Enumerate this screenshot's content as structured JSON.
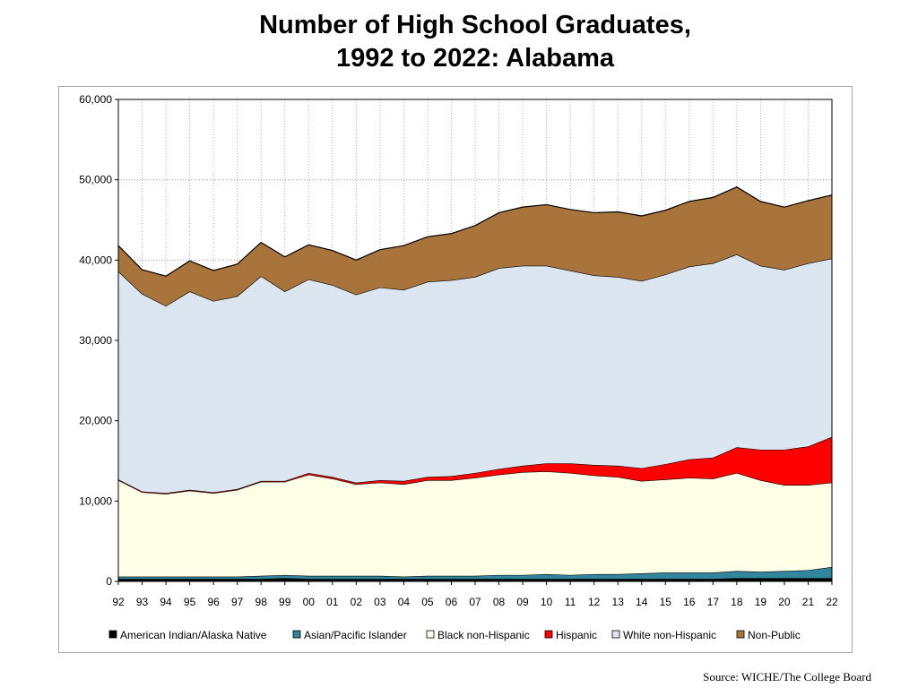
{
  "title": {
    "line1": "Number of High School Graduates,",
    "line2": "1992 to 2022:  Alabama"
  },
  "source": "Source: WICHE/The College Board",
  "chart_data": {
    "type": "area",
    "stacked": true,
    "categories": [
      "92",
      "93",
      "94",
      "95",
      "96",
      "97",
      "98",
      "99",
      "00",
      "01",
      "02",
      "03",
      "04",
      "05",
      "06",
      "07",
      "08",
      "09",
      "10",
      "11",
      "12",
      "13",
      "14",
      "15",
      "16",
      "17",
      "18",
      "19",
      "20",
      "21",
      "22"
    ],
    "ylim": [
      0,
      60000
    ],
    "yticks": [
      0,
      10000,
      20000,
      30000,
      40000,
      50000,
      60000
    ],
    "ytick_labels": [
      "0",
      "10,000",
      "20,000",
      "30,000",
      "40,000",
      "50,000",
      "60,000"
    ],
    "grid": true,
    "legend_position": "bottom",
    "series": [
      {
        "name": "American Indian/Alaska  Native",
        "color": "#000000",
        "values": [
          300,
          300,
          300,
          300,
          300,
          300,
          300,
          400,
          300,
          300,
          300,
          300,
          300,
          300,
          300,
          300,
          300,
          300,
          300,
          300,
          300,
          300,
          300,
          300,
          300,
          300,
          400,
          400,
          400,
          400,
          400
        ]
      },
      {
        "name": "Asian/Pacific Islander",
        "color": "#31859c",
        "values": [
          300,
          300,
          300,
          300,
          300,
          300,
          400,
          400,
          400,
          400,
          400,
          400,
          300,
          400,
          400,
          400,
          500,
          500,
          600,
          500,
          600,
          600,
          700,
          800,
          800,
          800,
          900,
          800,
          900,
          1000,
          1400
        ]
      },
      {
        "name": "Black non-Hispanic",
        "color": "#ffffe8",
        "values": [
          12000,
          10500,
          10300,
          10700,
          10400,
          10800,
          11700,
          11600,
          12600,
          12100,
          11400,
          11600,
          11500,
          11900,
          11900,
          12200,
          12500,
          12800,
          12800,
          12700,
          12300,
          12100,
          11500,
          11600,
          11800,
          11700,
          12200,
          11400,
          10700,
          10600,
          10500
        ]
      },
      {
        "name": "Hispanic",
        "color": "#ff0000",
        "values": [
          100,
          100,
          100,
          100,
          100,
          100,
          100,
          100,
          200,
          200,
          200,
          300,
          400,
          400,
          500,
          600,
          700,
          800,
          1000,
          1200,
          1300,
          1400,
          1600,
          1900,
          2300,
          2600,
          3200,
          3800,
          4400,
          4800,
          5700
        ]
      },
      {
        "name": "White non-Hispanic",
        "color": "#dce6f1",
        "values": [
          25900,
          24600,
          23300,
          24700,
          23800,
          24000,
          25500,
          23600,
          24100,
          23900,
          23400,
          24000,
          23800,
          24300,
          24400,
          24400,
          25000,
          24900,
          24600,
          24000,
          23600,
          23500,
          23300,
          23600,
          24000,
          24200,
          24000,
          22900,
          22400,
          22800,
          22200
        ]
      },
      {
        "name": "Non-Public",
        "color": "#a9743b",
        "values": [
          3200,
          3000,
          3700,
          3800,
          3800,
          4000,
          4200,
          4300,
          4300,
          4300,
          4300,
          4700,
          5500,
          5600,
          5800,
          6400,
          6900,
          7300,
          7600,
          7600,
          7800,
          8100,
          8100,
          8000,
          8100,
          8200,
          8400,
          8000,
          7800,
          7800,
          7900
        ]
      }
    ]
  }
}
